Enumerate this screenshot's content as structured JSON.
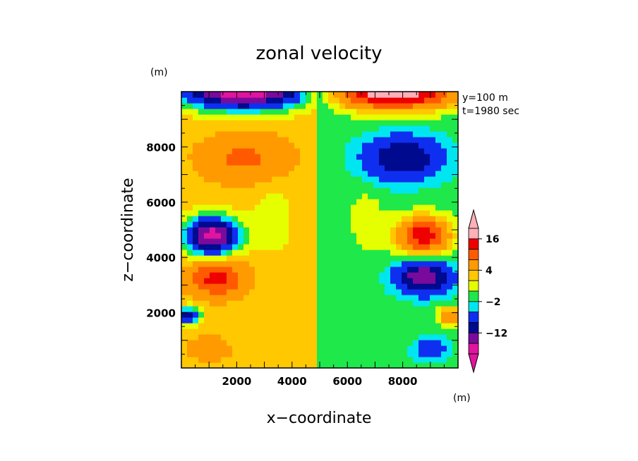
{
  "chart_data": {
    "type": "heatmap",
    "title": "zonal velocity",
    "xlabel": "x−coordinate",
    "ylabel": "z−coordinate",
    "x_unit": "(m)",
    "y_unit": "(m)",
    "xlim": [
      0,
      10000
    ],
    "ylim": [
      0,
      10000
    ],
    "x_ticks": [
      2000,
      4000,
      6000,
      8000
    ],
    "y_ticks": [
      2000,
      4000,
      6000,
      8000
    ],
    "x_tick_labels": [
      "2000",
      "4000",
      "6000",
      "8000"
    ],
    "y_tick_labels": [
      "2000",
      "4000",
      "6000",
      "8000"
    ],
    "info_lines": [
      "y=100 m",
      "t=1980 sec"
    ],
    "colorbar": {
      "unit": "(m)",
      "labels": [
        "16",
        "4",
        "−2",
        "−12"
      ],
      "levels": [
        -20,
        -16,
        -12,
        -8,
        -4,
        -2,
        0,
        2,
        4,
        8,
        12,
        16,
        20
      ],
      "colors": [
        "#e0149e",
        "#7a0a9c",
        "#000a8f",
        "#0f2ff0",
        "#00e6f0",
        "#1ee84a",
        "#e6ff00",
        "#ffc800",
        "#ff9a00",
        "#ff5a00",
        "#ee0000",
        "#ffb0b8"
      ],
      "low_extend_color": "#e0149e",
      "high_extend_color": "#ffb0b8"
    },
    "features": [
      {
        "x": 1100,
        "z": 4800,
        "value": -18
      },
      {
        "x": 1300,
        "z": 3200,
        "value": 13
      },
      {
        "x": 2200,
        "z": 7600,
        "value": 9
      },
      {
        "x": 2300,
        "z": 9800,
        "value": -19
      },
      {
        "x": 250,
        "z": 1900,
        "value": -10
      },
      {
        "x": 1000,
        "z": 700,
        "value": 7
      },
      {
        "x": 8700,
        "z": 4800,
        "value": 14
      },
      {
        "x": 8700,
        "z": 3300,
        "value": -16
      },
      {
        "x": 8000,
        "z": 7600,
        "value": -11
      },
      {
        "x": 7700,
        "z": 9800,
        "value": 19
      },
      {
        "x": 9700,
        "z": 1900,
        "value": 8
      },
      {
        "x": 9000,
        "z": 700,
        "value": -7
      }
    ]
  }
}
